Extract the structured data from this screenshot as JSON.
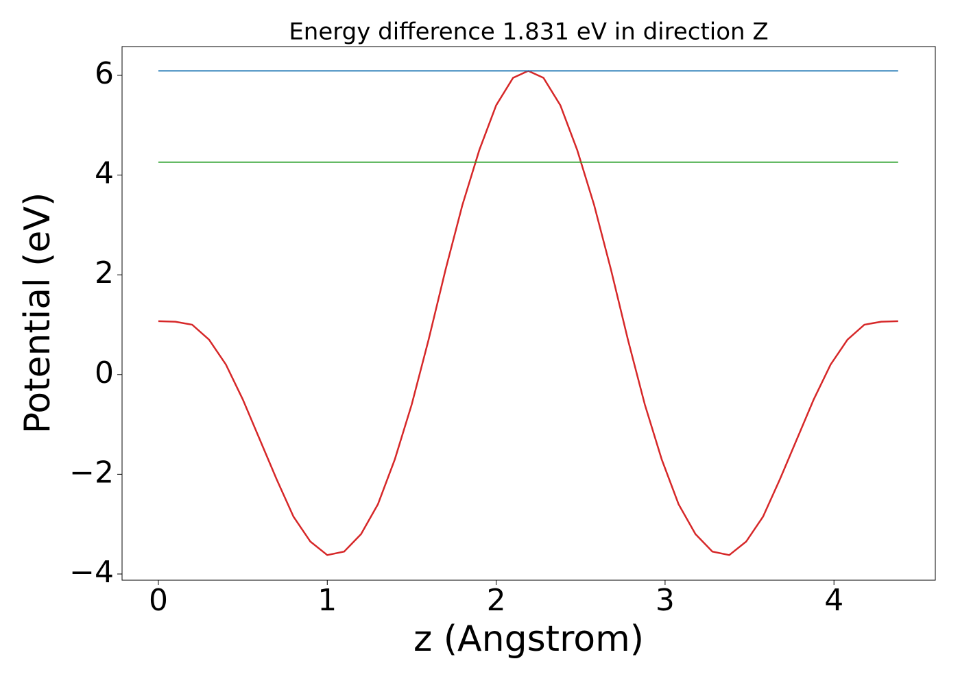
{
  "chart_data": {
    "type": "line",
    "title": "Energy difference 1.831 eV in direction Z",
    "x_label": "z (Angstrom)",
    "y_label": "Potential (eV)",
    "xlim": [
      -0.215,
      4.6
    ],
    "ylim": [
      -4.124,
      6.577
    ],
    "xticks": [
      0,
      1,
      2,
      3,
      4
    ],
    "yticks": [
      {
        "value": -4,
        "label": "−4"
      },
      {
        "value": -2,
        "label": "−2"
      },
      0,
      2,
      4,
      6
    ],
    "series": [
      {
        "color": "#d62728",
        "x": [
          0,
          0.1,
          0.2,
          0.3,
          0.4,
          0.5,
          0.6,
          0.7,
          0.8,
          0.9,
          1.0,
          1.1,
          1.2,
          1.3,
          1.4,
          1.5,
          1.6,
          1.7,
          1.8,
          1.9,
          2.0,
          2.1,
          2.19,
          2.28,
          2.38,
          2.48,
          2.58,
          2.68,
          2.78,
          2.88,
          2.98,
          3.08,
          3.18,
          3.28,
          3.38,
          3.48,
          3.58,
          3.68,
          3.78,
          3.88,
          3.98,
          4.08,
          4.18,
          4.28,
          4.38
        ],
        "values": [
          1.07,
          1.06,
          1.0,
          0.7,
          0.2,
          -0.5,
          -1.3,
          -2.1,
          -2.85,
          -3.35,
          -3.62,
          -3.55,
          -3.2,
          -2.6,
          -1.7,
          -0.6,
          0.7,
          2.1,
          3.4,
          4.5,
          5.4,
          5.95,
          6.09,
          5.95,
          5.4,
          4.5,
          3.4,
          2.1,
          0.7,
          -0.6,
          -1.7,
          -2.6,
          -3.2,
          -3.55,
          -3.62,
          -3.35,
          -2.85,
          -2.1,
          -1.3,
          -0.5,
          0.2,
          0.7,
          1.0,
          1.06,
          1.07
        ]
      },
      {
        "color": "#1f77b4",
        "x": [
          0,
          4.38
        ],
        "values": [
          6.09,
          6.09
        ]
      },
      {
        "color": "#2ca02c",
        "x": [
          0,
          4.38
        ],
        "values": [
          4.259,
          4.259
        ]
      }
    ]
  }
}
